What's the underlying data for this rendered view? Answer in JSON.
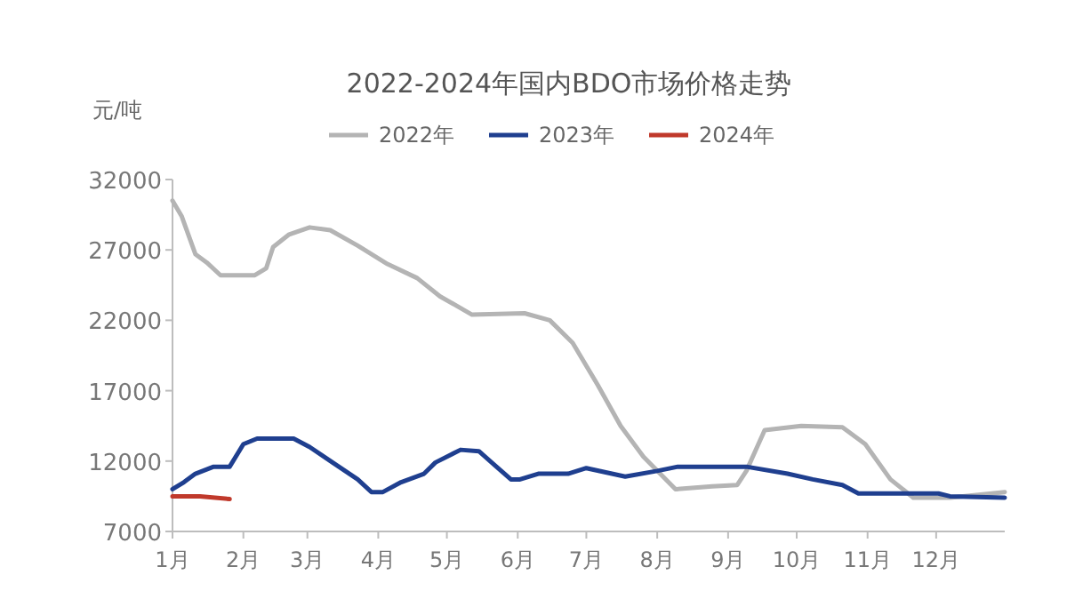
{
  "chart_data": {
    "type": "line",
    "title": "2022-2024年国内BDO市场价格走势",
    "ylabel": "元/吨",
    "legend": "top",
    "grid": false,
    "marker": "none",
    "line_style": "solid",
    "xlim": [
      "--01-01",
      "--12-31"
    ],
    "xticks": [
      {
        "value": "--01-01",
        "label": "1月"
      },
      {
        "value": "--02-01",
        "label": "2月"
      },
      {
        "value": "--03-01",
        "label": "3月"
      },
      {
        "value": "--04-01",
        "label": "4月"
      },
      {
        "value": "--05-01",
        "label": "5月"
      },
      {
        "value": "--06-01",
        "label": "6月"
      },
      {
        "value": "--07-01",
        "label": "7月"
      },
      {
        "value": "--08-01",
        "label": "8月"
      },
      {
        "value": "--09-01",
        "label": "9月"
      },
      {
        "value": "--10-01",
        "label": "10月"
      },
      {
        "value": "--11-01",
        "label": "11月"
      },
      {
        "value": "--12-01",
        "label": "12月"
      }
    ],
    "ylim": [
      7000,
      32000
    ],
    "yticks": [
      7000,
      12000,
      17000,
      22000,
      27000,
      32000
    ],
    "series": [
      {
        "name": "2022年",
        "color": "#b4b4b4",
        "x": [
          "--01-01",
          "--01-05",
          "--01-11",
          "--01-16",
          "--01-22",
          "--02-06",
          "--02-11",
          "--02-14",
          "--02-21",
          "--03-02",
          "--03-11",
          "--03-23",
          "--04-05",
          "--04-18",
          "--04-28",
          "--05-12",
          "--06-04",
          "--06-15",
          "--06-25",
          "--07-06",
          "--07-16",
          "--07-26",
          "--08-09",
          "--08-25",
          "--09-05",
          "--09-09",
          "--09-17",
          "--10-03",
          "--10-21",
          "--10-31",
          "--11-11",
          "--11-21",
          "--12-07",
          "--12-31"
        ],
        "values": [
          30500,
          29400,
          26700,
          26100,
          25200,
          25200,
          25700,
          27200,
          28100,
          28600,
          28400,
          27300,
          26000,
          25000,
          23700,
          22400,
          22500,
          22000,
          20400,
          17400,
          14500,
          12300,
          10000,
          10200,
          10300,
          11300,
          14200,
          14500,
          14400,
          13200,
          10700,
          9400,
          9400,
          9800
        ]
      },
      {
        "name": "2023年",
        "color": "#1f3f8f",
        "x": [
          "--01-01",
          "--01-06",
          "--01-11",
          "--01-19",
          "--01-26",
          "--02-01",
          "--02-07",
          "--02-23",
          "--03-02",
          "--03-12",
          "--03-23",
          "--03-29",
          "--04-03",
          "--04-11",
          "--04-21",
          "--04-26",
          "--05-07",
          "--05-15",
          "--05-22",
          "--05-29",
          "--06-02",
          "--06-10",
          "--06-23",
          "--07-01",
          "--07-18",
          "--08-01",
          "--08-10",
          "--09-09",
          "--09-27",
          "--10-08",
          "--10-21",
          "--10-28",
          "--12-02",
          "--12-07",
          "--12-31"
        ],
        "values": [
          10000,
          10500,
          11100,
          11600,
          11600,
          13200,
          13600,
          13600,
          13000,
          11900,
          10700,
          9800,
          9800,
          10500,
          11100,
          11900,
          12800,
          12700,
          11700,
          10700,
          10700,
          11100,
          11100,
          11500,
          10900,
          11300,
          11600,
          11600,
          11100,
          10700,
          10300,
          9700,
          9700,
          9500,
          9400
        ]
      },
      {
        "name": "2024年",
        "color": "#c0392b",
        "x": [
          "--01-01",
          "--01-13",
          "--01-26"
        ],
        "values": [
          9500,
          9500,
          9300
        ]
      }
    ]
  }
}
